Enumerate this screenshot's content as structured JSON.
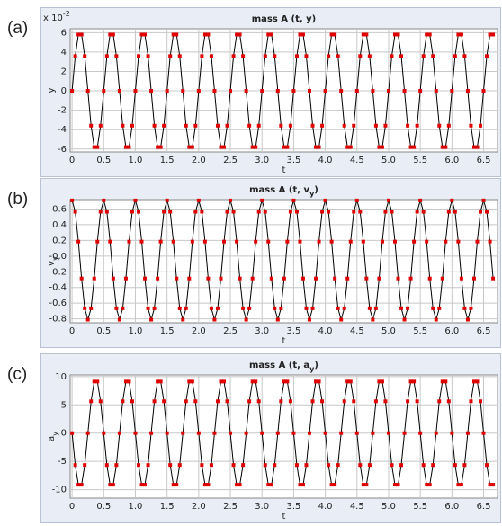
{
  "chart_data": [
    {
      "type": "line",
      "panel_label": "(a)",
      "title": [
        "mass A (t, y)"
      ],
      "xlabel": "t",
      "ylabel": [
        "y"
      ],
      "y_multiplier": [
        "x 10",
        "-2"
      ],
      "color": "#e00000",
      "line_color": "#000000",
      "grid": true,
      "xlim": [
        -0.03,
        6.72
      ],
      "ylim": [
        -6.3,
        6.4
      ],
      "xticks": [
        0,
        0.5,
        {
          "value": 1,
          "label": "1.0"
        },
        1.5,
        {
          "value": 2,
          "label": "2.0"
        },
        2.5,
        {
          "value": 3,
          "label": "3.0"
        },
        3.5,
        {
          "value": 4,
          "label": "4.0"
        },
        4.5,
        {
          "value": 5,
          "label": "5.0"
        },
        5.5,
        {
          "value": 6,
          "label": "6.0"
        },
        6.5
      ],
      "yticks": [
        6,
        4,
        2,
        0,
        -2,
        -4,
        -6
      ],
      "x": [
        0,
        0.05,
        0.1,
        0.15,
        0.2,
        0.25,
        0.3,
        0.35,
        0.4,
        0.45,
        0.5,
        0.55,
        0.6,
        0.65,
        0.7,
        0.75,
        0.8,
        0.85,
        0.9,
        0.95,
        1,
        1.05,
        1.1,
        1.15,
        1.2,
        1.25,
        1.3,
        1.35,
        1.4,
        1.45,
        1.5,
        1.55,
        1.6,
        1.65,
        1.7,
        1.75,
        1.8,
        1.85,
        1.9,
        1.95,
        2,
        2.05,
        2.1,
        2.15,
        2.2,
        2.25,
        2.3,
        2.35,
        2.4,
        2.45,
        2.5,
        2.55,
        2.6,
        2.65,
        2.7,
        2.75,
        2.8,
        2.85,
        2.9,
        2.95,
        3,
        3.05,
        3.1,
        3.15,
        3.2,
        3.25,
        3.3,
        3.35,
        3.4,
        3.45,
        3.5,
        3.55,
        3.6,
        3.65,
        3.7,
        3.75,
        3.8,
        3.85,
        3.9,
        3.95,
        4,
        4.05,
        4.1,
        4.15,
        4.2,
        4.25,
        4.3,
        4.35,
        4.4,
        4.45,
        4.5,
        4.55,
        4.6,
        4.65,
        4.7,
        4.75,
        4.8,
        4.85,
        4.9,
        4.95,
        5,
        5.05,
        5.1,
        5.15,
        5.2,
        5.25,
        5.3,
        5.35,
        5.4,
        5.45,
        5.5,
        5.55,
        5.6,
        5.65,
        5.7,
        5.75,
        5.8,
        5.85,
        5.9,
        5.95,
        6,
        6.05,
        6.1,
        6.15,
        6.2,
        6.25,
        6.3,
        6.35,
        6.4,
        6.45,
        6.5,
        6.55,
        6.6,
        6.65
      ],
      "values": [
        0,
        3.59,
        5.8,
        5.8,
        3.59,
        0,
        -3.59,
        -5.8,
        -5.8,
        -3.59,
        0,
        3.59,
        5.8,
        5.8,
        3.59,
        0,
        -3.59,
        -5.8,
        -5.8,
        -3.59,
        0,
        3.59,
        5.8,
        5.8,
        3.59,
        0,
        -3.59,
        -5.8,
        -5.8,
        -3.59,
        0,
        3.59,
        5.8,
        5.8,
        3.59,
        0,
        -3.59,
        -5.8,
        -5.8,
        -3.59,
        0,
        3.59,
        5.8,
        5.8,
        3.59,
        0,
        -3.59,
        -5.8,
        -5.8,
        -3.59,
        0,
        3.59,
        5.8,
        5.8,
        3.59,
        0,
        -3.59,
        -5.8,
        -5.8,
        -3.59,
        0,
        3.59,
        5.8,
        5.8,
        3.59,
        0,
        -3.59,
        -5.8,
        -5.8,
        -3.59,
        0,
        3.59,
        5.8,
        5.8,
        3.59,
        0,
        -3.59,
        -5.8,
        -5.8,
        -3.59,
        0,
        3.59,
        5.8,
        5.8,
        3.59,
        0,
        -3.59,
        -5.8,
        -5.8,
        -3.59,
        0,
        3.59,
        5.8,
        5.8,
        3.59,
        0,
        -3.59,
        -5.8,
        -5.8,
        -3.59,
        0,
        3.59,
        5.8,
        5.8,
        3.59,
        0,
        -3.59,
        -5.8,
        -5.8,
        -3.59,
        0,
        3.59,
        5.8,
        5.8,
        3.59,
        0,
        -3.59,
        -5.8,
        -5.8,
        -3.59,
        0,
        3.59,
        5.8,
        5.8,
        3.59,
        0,
        -3.59,
        -5.8,
        -5.8,
        -3.59,
        0,
        3.59,
        5.8,
        5.8
      ]
    },
    {
      "type": "line",
      "panel_label": "(b)",
      "title": [
        "mass A (t, v",
        "y",
        ")"
      ],
      "xlabel": "t",
      "ylabel": [
        "v",
        "y"
      ],
      "color": "#e00000",
      "line_color": "#000000",
      "grid": true,
      "xlim": [
        -0.03,
        6.72
      ],
      "ylim": [
        -0.85,
        0.72
      ],
      "xticks": [
        0,
        0.5,
        {
          "value": 1,
          "label": "1.0"
        },
        1.5,
        {
          "value": 2,
          "label": "2.0"
        },
        2.5,
        {
          "value": 3,
          "label": "3.0"
        },
        3.5,
        {
          "value": 4,
          "label": "4.0"
        },
        4.5,
        {
          "value": 5,
          "label": "5.0"
        },
        5.5,
        {
          "value": 6,
          "label": "6.0"
        },
        6.5
      ],
      "yticks": [
        0.6,
        0.4,
        0.2,
        {
          "value": 0,
          "label": "-0.0"
        },
        -0.2,
        -0.4,
        -0.6,
        -0.8
      ],
      "x": [
        0,
        0.05,
        0.1,
        0.15,
        0.2,
        0.25,
        0.3,
        0.35,
        0.4,
        0.45,
        0.5,
        0.55,
        0.6,
        0.65,
        0.7,
        0.75,
        0.8,
        0.85,
        0.9,
        0.95,
        1,
        1.05,
        1.1,
        1.15,
        1.2,
        1.25,
        1.3,
        1.35,
        1.4,
        1.45,
        1.5,
        1.55,
        1.6,
        1.65,
        1.7,
        1.75,
        1.8,
        1.85,
        1.9,
        1.95,
        2,
        2.05,
        2.1,
        2.15,
        2.2,
        2.25,
        2.3,
        2.35,
        2.4,
        2.45,
        2.5,
        2.55,
        2.6,
        2.65,
        2.7,
        2.75,
        2.8,
        2.85,
        2.9,
        2.95,
        3,
        3.05,
        3.1,
        3.15,
        3.2,
        3.25,
        3.3,
        3.35,
        3.4,
        3.45,
        3.5,
        3.55,
        3.6,
        3.65,
        3.7,
        3.75,
        3.8,
        3.85,
        3.9,
        3.95,
        4,
        4.05,
        4.1,
        4.15,
        4.2,
        4.25,
        4.3,
        4.35,
        4.4,
        4.45,
        4.5,
        4.55,
        4.6,
        4.65,
        4.7,
        4.75,
        4.8,
        4.85,
        4.9,
        4.95,
        5,
        5.05,
        5.1,
        5.15,
        5.2,
        5.25,
        5.3,
        5.35,
        5.4,
        5.45,
        5.5,
        5.55,
        5.6,
        5.65,
        5.7,
        5.75,
        5.8,
        5.85,
        5.9,
        5.95,
        6,
        6.05,
        6.1,
        6.15,
        6.2,
        6.25,
        6.3,
        6.35,
        6.4,
        6.45,
        6.5,
        6.55,
        6.6,
        6.65
      ],
      "values": [
        0.71,
        0.565,
        0.185,
        -0.285,
        -0.665,
        -0.81,
        -0.665,
        -0.285,
        0.185,
        0.565,
        0.71,
        0.565,
        0.185,
        -0.285,
        -0.665,
        -0.81,
        -0.665,
        -0.285,
        0.185,
        0.565,
        0.71,
        0.565,
        0.185,
        -0.285,
        -0.665,
        -0.81,
        -0.665,
        -0.285,
        0.185,
        0.565,
        0.71,
        0.565,
        0.185,
        -0.285,
        -0.665,
        -0.81,
        -0.665,
        -0.285,
        0.185,
        0.565,
        0.71,
        0.565,
        0.185,
        -0.285,
        -0.665,
        -0.81,
        -0.665,
        -0.285,
        0.185,
        0.565,
        0.71,
        0.565,
        0.185,
        -0.285,
        -0.665,
        -0.81,
        -0.665,
        -0.285,
        0.185,
        0.565,
        0.71,
        0.565,
        0.185,
        -0.285,
        -0.665,
        -0.81,
        -0.665,
        -0.285,
        0.185,
        0.565,
        0.71,
        0.565,
        0.185,
        -0.285,
        -0.665,
        -0.81,
        -0.665,
        -0.285,
        0.185,
        0.565,
        0.71,
        0.565,
        0.185,
        -0.285,
        -0.665,
        -0.81,
        -0.665,
        -0.285,
        0.185,
        0.565,
        0.71,
        0.565,
        0.185,
        -0.285,
        -0.665,
        -0.81,
        -0.665,
        -0.285,
        0.185,
        0.565,
        0.71,
        0.565,
        0.185,
        -0.285,
        -0.665,
        -0.81,
        -0.665,
        -0.285,
        0.185,
        0.565,
        0.71,
        0.565,
        0.185,
        -0.285,
        -0.665,
        -0.81,
        -0.665,
        -0.285,
        0.185,
        0.565,
        0.71,
        0.565,
        0.185,
        -0.285,
        -0.665,
        -0.81,
        -0.665,
        -0.285,
        0.185,
        0.565,
        0.71,
        0.565,
        0.185,
        -0.285
      ]
    },
    {
      "type": "line",
      "panel_label": "(c)",
      "title": [
        "mass A (t, a",
        "y",
        ")"
      ],
      "xlabel": "t",
      "ylabel": [
        "a",
        "y"
      ],
      "color": "#e00000",
      "line_color": "#000000",
      "grid": true,
      "xlim": [
        -0.03,
        6.72
      ],
      "ylim": [
        -11.5,
        10.3
      ],
      "xticks": [
        0,
        0.5,
        {
          "value": 1,
          "label": "1.0"
        },
        1.5,
        {
          "value": 2,
          "label": "2.0"
        },
        2.5,
        {
          "value": 3,
          "label": "3.0"
        },
        3.5,
        {
          "value": 4,
          "label": "4.0"
        },
        4.5,
        {
          "value": 5,
          "label": "5.0"
        },
        5.5,
        {
          "value": 6,
          "label": "6.0"
        },
        6.5
      ],
      "yticks": [
        10,
        5,
        0,
        -5,
        -10
      ],
      "x": [
        0,
        0.05,
        0.1,
        0.15,
        0.2,
        0.25,
        0.3,
        0.35,
        0.4,
        0.45,
        0.5,
        0.55,
        0.6,
        0.65,
        0.7,
        0.75,
        0.8,
        0.85,
        0.9,
        0.95,
        1,
        1.05,
        1.1,
        1.15,
        1.2,
        1.25,
        1.3,
        1.35,
        1.4,
        1.45,
        1.5,
        1.55,
        1.6,
        1.65,
        1.7,
        1.75,
        1.8,
        1.85,
        1.9,
        1.95,
        2,
        2.05,
        2.1,
        2.15,
        2.2,
        2.25,
        2.3,
        2.35,
        2.4,
        2.45,
        2.5,
        2.55,
        2.6,
        2.65,
        2.7,
        2.75,
        2.8,
        2.85,
        2.9,
        2.95,
        3,
        3.05,
        3.1,
        3.15,
        3.2,
        3.25,
        3.3,
        3.35,
        3.4,
        3.45,
        3.5,
        3.55,
        3.6,
        3.65,
        3.7,
        3.75,
        3.8,
        3.85,
        3.9,
        3.95,
        4,
        4.05,
        4.1,
        4.15,
        4.2,
        4.25,
        4.3,
        4.35,
        4.4,
        4.45,
        4.5,
        4.55,
        4.6,
        4.65,
        4.7,
        4.75,
        4.8,
        4.85,
        4.9,
        4.95,
        5,
        5.05,
        5.1,
        5.15,
        5.2,
        5.25,
        5.3,
        5.35,
        5.4,
        5.45,
        5.5,
        5.55,
        5.6,
        5.65,
        5.7,
        5.75,
        5.8,
        5.85,
        5.9,
        5.95,
        6,
        6.05,
        6.1,
        6.15,
        6.2,
        6.25,
        6.3,
        6.35,
        6.4,
        6.45,
        6.5,
        6.55,
        6.6,
        6.65
      ],
      "values": [
        0,
        -5.64,
        -9.13,
        -9.13,
        -5.64,
        0,
        5.64,
        9.13,
        9.13,
        5.64,
        0,
        -5.64,
        -9.13,
        -9.13,
        -5.64,
        0,
        5.64,
        9.13,
        9.13,
        5.64,
        0,
        -5.64,
        -9.13,
        -9.13,
        -5.64,
        0,
        5.64,
        9.13,
        9.13,
        5.64,
        0,
        -5.64,
        -9.13,
        -9.13,
        -5.64,
        0,
        5.64,
        9.13,
        9.13,
        5.64,
        0,
        -5.64,
        -9.13,
        -9.13,
        -5.64,
        0,
        5.64,
        9.13,
        9.13,
        5.64,
        0,
        -5.64,
        -9.13,
        -9.13,
        -5.64,
        0,
        5.64,
        9.13,
        9.13,
        5.64,
        0,
        -5.64,
        -9.13,
        -9.13,
        -5.64,
        0,
        5.64,
        9.13,
        9.13,
        5.64,
        0,
        -5.64,
        -9.13,
        -9.13,
        -5.64,
        0,
        5.64,
        9.13,
        9.13,
        5.64,
        0,
        -5.64,
        -9.13,
        -9.13,
        -5.64,
        0,
        5.64,
        9.13,
        9.13,
        5.64,
        0,
        -5.64,
        -9.13,
        -9.13,
        -5.64,
        0,
        5.64,
        9.13,
        9.13,
        5.64,
        0,
        -5.64,
        -9.13,
        -9.13,
        -5.64,
        0,
        5.64,
        9.13,
        9.13,
        5.64,
        0,
        -5.64,
        -9.13,
        -9.13,
        -5.64,
        0,
        5.64,
        9.13,
        9.13,
        5.64,
        0,
        -5.64,
        -9.13,
        -9.13,
        -5.64,
        0,
        5.64,
        9.13,
        9.13,
        5.64,
        0,
        -5.64,
        -9.13,
        -9.13
      ]
    }
  ]
}
